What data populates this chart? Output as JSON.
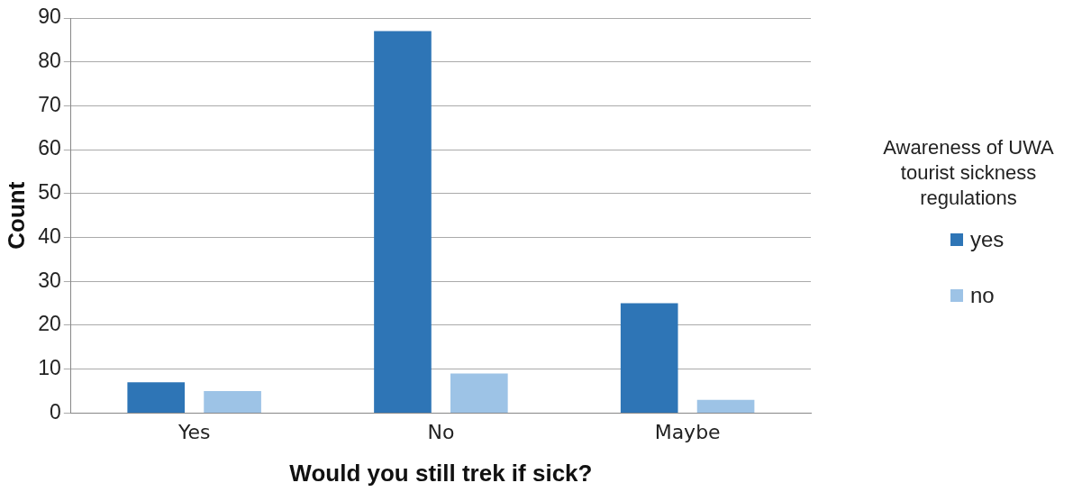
{
  "chart_data": {
    "type": "bar",
    "xlabel": "Would you still trek if sick?",
    "ylabel": "Count",
    "legend_title": "Awareness of UWA tourist sickness regulations",
    "categories": [
      "Yes",
      "No",
      "Maybe"
    ],
    "series": [
      {
        "name": "yes",
        "color": "#2e75b6",
        "values": [
          7,
          87,
          25
        ]
      },
      {
        "name": "no",
        "color": "#9dc3e6",
        "values": [
          5,
          9,
          3
        ]
      }
    ],
    "ylim": [
      0,
      90
    ],
    "yticks": [
      0,
      10,
      20,
      30,
      40,
      50,
      60,
      70,
      80,
      90
    ],
    "grid": "y",
    "legend": "right"
  }
}
